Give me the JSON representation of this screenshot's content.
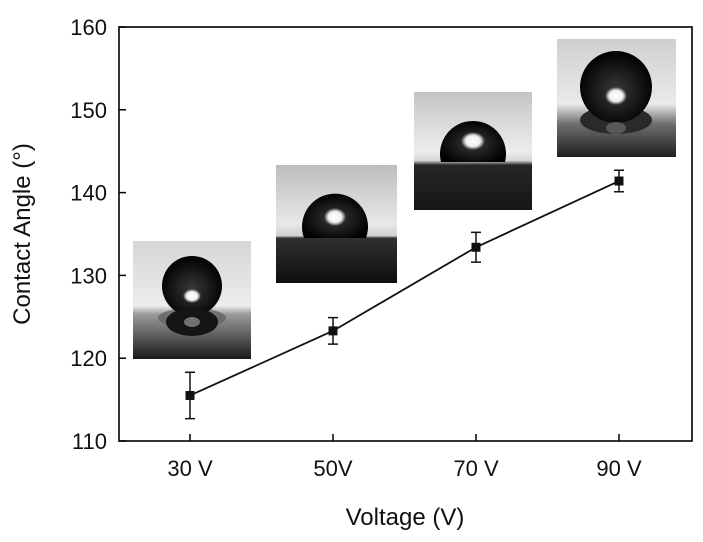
{
  "chart_data": {
    "type": "line",
    "title": "",
    "xlabel": "Voltage (V)",
    "ylabel": "Contact Angle (°)",
    "categories": [
      "30 V",
      "50V",
      "70 V",
      "90 V"
    ],
    "ylim": [
      110,
      160
    ],
    "yticks": [
      110,
      120,
      130,
      140,
      150,
      160
    ],
    "series": [
      {
        "values": [
          115.5,
          123.3,
          133.4,
          141.4
        ],
        "errors": [
          2.8,
          1.6,
          1.8,
          1.3
        ],
        "color": "#111111",
        "marker": "square"
      }
    ],
    "grid": false,
    "legend": "none",
    "insets": [
      "droplet-photo-30v",
      "droplet-photo-50v",
      "droplet-photo-70v",
      "droplet-photo-90v"
    ]
  }
}
